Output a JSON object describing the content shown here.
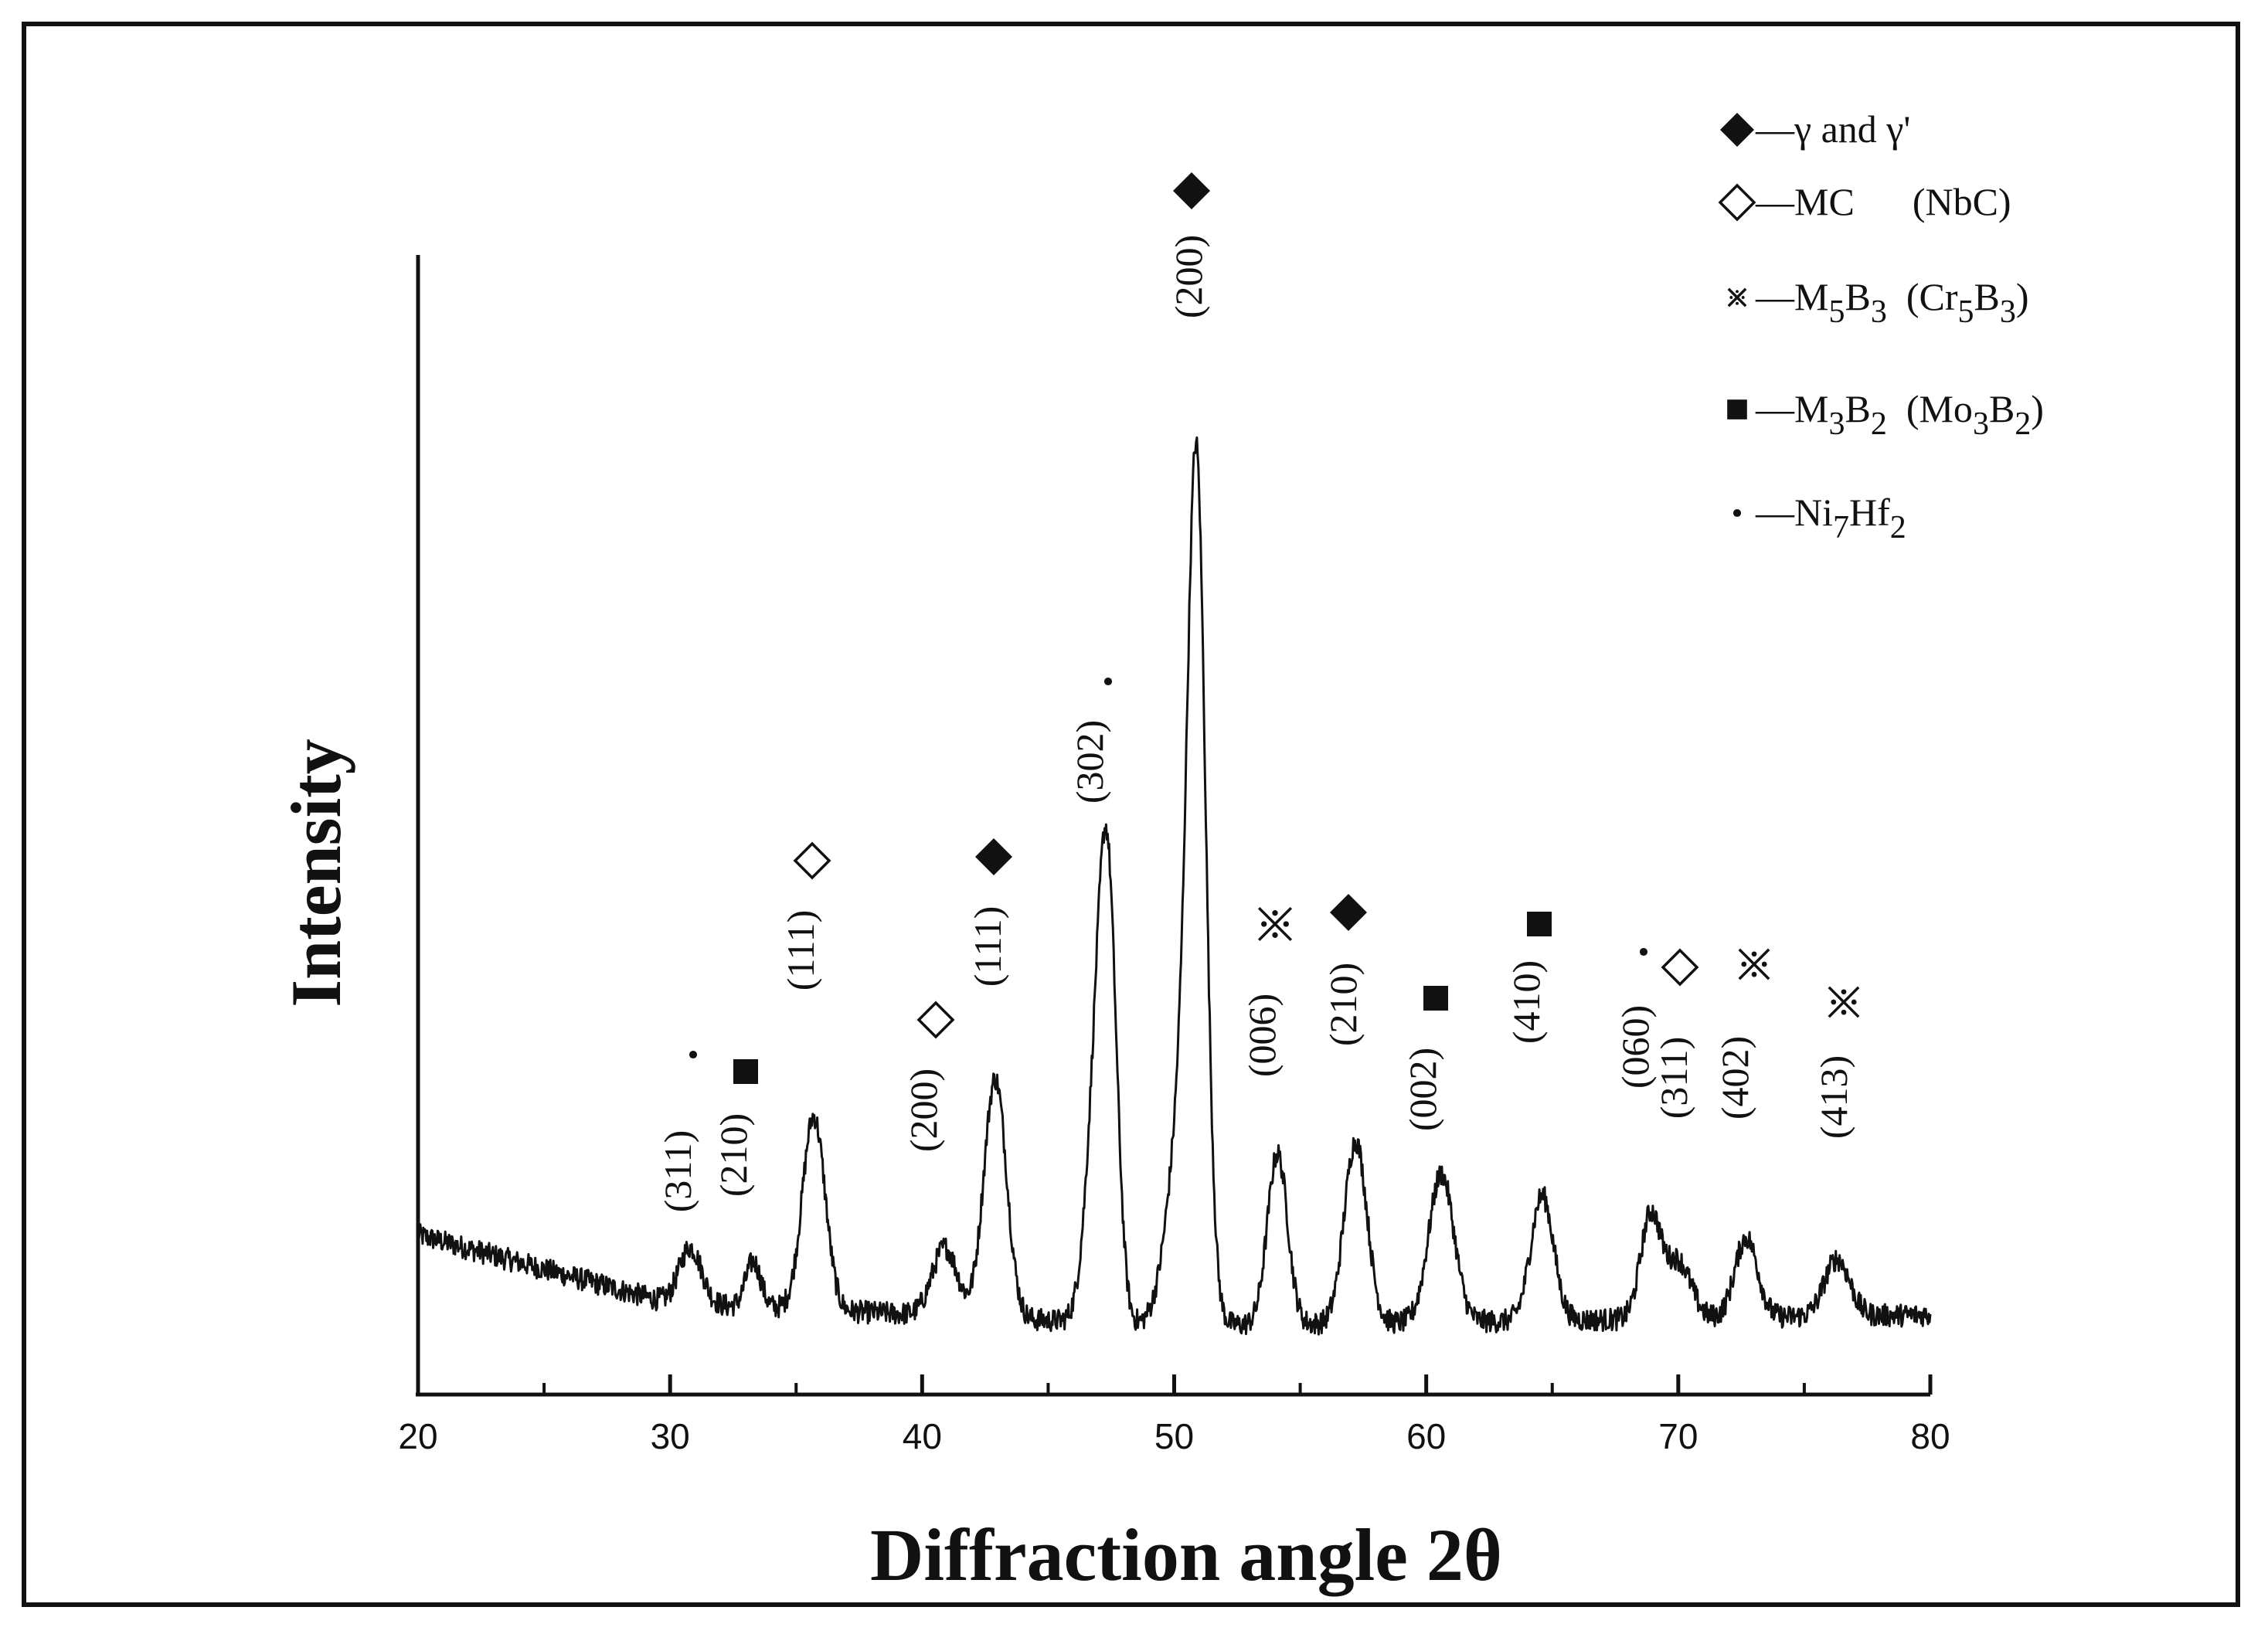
{
  "chart_data": {
    "type": "line",
    "title": "",
    "xlabel": "Diffraction angle 2θ",
    "ylabel": "Intensity",
    "xlim": [
      20,
      80
    ],
    "ylim": [
      0,
      100
    ],
    "y_ticks_shown": false,
    "grid": false,
    "x_ticks": [
      20,
      30,
      40,
      50,
      60,
      70,
      80
    ],
    "x_tick_labels": [
      "20",
      "30",
      "40",
      "50",
      "60",
      "70",
      "80"
    ],
    "background": {
      "base": 8,
      "start": 14,
      "mid_level": 6,
      "end": 7
    },
    "peaks": [
      {
        "x": 30.8,
        "height": 5,
        "width": 0.45
      },
      {
        "x": 33.3,
        "height": 4,
        "width": 0.3
      },
      {
        "x": 35.7,
        "height": 17,
        "width": 0.45
      },
      {
        "x": 40.9,
        "height": 6,
        "width": 0.5
      },
      {
        "x": 42.9,
        "height": 21,
        "width": 0.45
      },
      {
        "x": 47.0,
        "height": 22,
        "width": 0.45
      },
      {
        "x": 47.4,
        "height": 27,
        "width": 0.35
      },
      {
        "x": 50.4,
        "height": 20,
        "width": 0.6
      },
      {
        "x": 50.9,
        "height": 63,
        "width": 0.35
      },
      {
        "x": 54.1,
        "height": 15,
        "width": 0.4
      },
      {
        "x": 57.2,
        "height": 16,
        "width": 0.45
      },
      {
        "x": 60.6,
        "height": 13,
        "width": 0.5
      },
      {
        "x": 64.6,
        "height": 11,
        "width": 0.45
      },
      {
        "x": 68.9,
        "height": 9,
        "width": 0.4
      },
      {
        "x": 70.0,
        "height": 5,
        "width": 0.5
      },
      {
        "x": 72.7,
        "height": 7,
        "width": 0.45
      },
      {
        "x": 76.3,
        "height": 5,
        "width": 0.5
      }
    ],
    "annotations": [
      {
        "label": "(311)",
        "phase": "dot"
      },
      {
        "label": "(210)",
        "phase": "square"
      },
      {
        "label": "(111)",
        "phase": "open-diamond"
      },
      {
        "label": "(200)",
        "phase": "open-diamond"
      },
      {
        "label": "(111)",
        "phase": "filled-diamond"
      },
      {
        "label": "(302)",
        "phase": "dot"
      },
      {
        "label": "(200)",
        "phase": "filled-diamond"
      },
      {
        "label": "(006)",
        "phase": "kome"
      },
      {
        "label": "(210)",
        "phase": "filled-diamond"
      },
      {
        "label": "(002)",
        "phase": "square"
      },
      {
        "label": "(410)",
        "phase": "square"
      },
      {
        "label": "(060)",
        "phase": "dot"
      },
      {
        "label": "(311)",
        "phase": "open-diamond"
      },
      {
        "label": "(402)",
        "phase": "kome"
      },
      {
        "label": "(413)",
        "phase": "kome"
      }
    ],
    "legend": [
      {
        "symbol": "filled-diamond",
        "dash": "—",
        "parts": [
          {
            "t": "γ and γ'",
            "s": 0
          }
        ]
      },
      {
        "symbol": "open-diamond",
        "dash": "—",
        "parts": [
          {
            "t": "MC",
            "s": 0
          },
          {
            "t": "      (NbC)",
            "s": 0
          }
        ]
      },
      {
        "symbol": "kome",
        "dash": "—",
        "parts": [
          {
            "t": "M",
            "s": 0
          },
          {
            "t": "5",
            "s": 1
          },
          {
            "t": "B",
            "s": 0
          },
          {
            "t": "3",
            "s": 1
          },
          {
            "t": "  (Cr",
            "s": 0
          },
          {
            "t": "5",
            "s": 1
          },
          {
            "t": "B",
            "s": 0
          },
          {
            "t": "3",
            "s": 1
          },
          {
            "t": ")",
            "s": 0
          }
        ]
      },
      {
        "symbol": "square",
        "dash": "—",
        "parts": [
          {
            "t": "M",
            "s": 0
          },
          {
            "t": "3",
            "s": 1
          },
          {
            "t": "B",
            "s": 0
          },
          {
            "t": "2",
            "s": 1
          },
          {
            "t": "  (Mo",
            "s": 0
          },
          {
            "t": "3",
            "s": 1
          },
          {
            "t": "B",
            "s": 0
          },
          {
            "t": "2",
            "s": 1
          },
          {
            "t": ")",
            "s": 0
          }
        ]
      },
      {
        "symbol": "dot",
        "dash": "—",
        "parts": [
          {
            "t": "Ni",
            "s": 0
          },
          {
            "t": "7",
            "s": 1
          },
          {
            "t": "Hf",
            "s": 0
          },
          {
            "t": "2",
            "s": 1
          }
        ]
      }
    ]
  }
}
